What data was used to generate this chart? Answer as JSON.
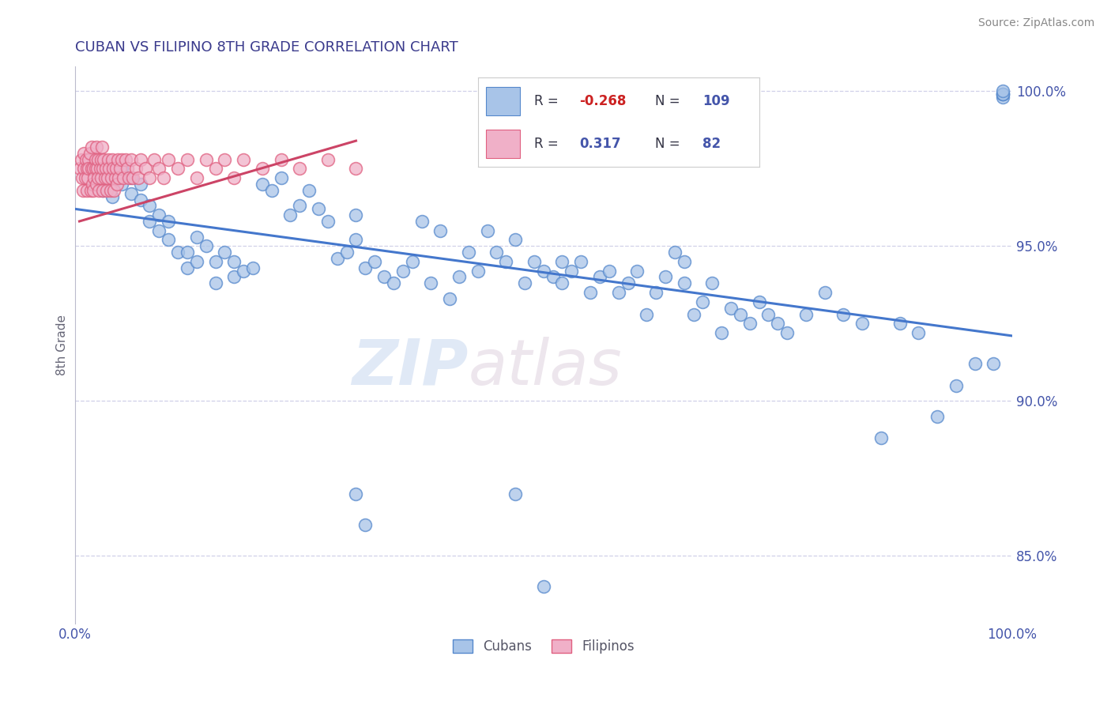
{
  "title": "CUBAN VS FILIPINO 8TH GRADE CORRELATION CHART",
  "source": "Source: ZipAtlas.com",
  "ylabel": "8th Grade",
  "xlim": [
    0.0,
    1.0
  ],
  "ylim": [
    0.828,
    1.008
  ],
  "ytick_vals": [
    0.85,
    0.9,
    0.95,
    1.0
  ],
  "ytick_labels": [
    "85.0%",
    "90.0%",
    "95.0%",
    "100.0%"
  ],
  "grid_yticks": [
    0.85,
    0.9,
    0.95,
    1.0
  ],
  "xtick_vals": [
    0.0,
    0.1,
    0.2,
    0.3,
    0.4,
    0.5,
    0.6,
    0.7,
    0.8,
    0.9,
    1.0
  ],
  "xtick_labels": [
    "0.0%",
    "",
    "",
    "",
    "",
    "",
    "",
    "",
    "",
    "",
    "100.0%"
  ],
  "grid_color": "#d0d0e8",
  "background_color": "#ffffff",
  "title_color": "#3a3a8c",
  "source_color": "#888888",
  "blue_fill": "#a8c4e8",
  "blue_edge": "#5588cc",
  "pink_fill": "#f0b0c8",
  "pink_edge": "#e06080",
  "blue_line_color": "#4477cc",
  "pink_line_color": "#cc4466",
  "legend_label1": "Cubans",
  "legend_label2": "Filipinos",
  "watermark_zip": "ZIP",
  "watermark_atlas": "atlas",
  "cubans_x": [
    0.02,
    0.03,
    0.04,
    0.04,
    0.05,
    0.05,
    0.06,
    0.06,
    0.07,
    0.07,
    0.08,
    0.08,
    0.09,
    0.09,
    0.1,
    0.1,
    0.11,
    0.12,
    0.12,
    0.13,
    0.13,
    0.14,
    0.15,
    0.15,
    0.16,
    0.17,
    0.17,
    0.18,
    0.19,
    0.2,
    0.21,
    0.22,
    0.23,
    0.24,
    0.25,
    0.26,
    0.27,
    0.28,
    0.29,
    0.3,
    0.3,
    0.31,
    0.32,
    0.33,
    0.34,
    0.35,
    0.36,
    0.37,
    0.38,
    0.39,
    0.4,
    0.41,
    0.42,
    0.43,
    0.44,
    0.45,
    0.46,
    0.47,
    0.48,
    0.49,
    0.5,
    0.51,
    0.52,
    0.52,
    0.53,
    0.54,
    0.55,
    0.56,
    0.57,
    0.58,
    0.59,
    0.6,
    0.61,
    0.62,
    0.63,
    0.64,
    0.65,
    0.65,
    0.66,
    0.67,
    0.68,
    0.69,
    0.7,
    0.71,
    0.72,
    0.73,
    0.74,
    0.75,
    0.76,
    0.78,
    0.8,
    0.82,
    0.84,
    0.86,
    0.88,
    0.9,
    0.92,
    0.94,
    0.96,
    0.98,
    0.99,
    0.99,
    0.99,
    0.99,
    0.3,
    0.31,
    0.47,
    0.5,
    0.99
  ],
  "cubans_y": [
    0.97,
    0.968,
    0.972,
    0.966,
    0.975,
    0.97,
    0.972,
    0.967,
    0.965,
    0.97,
    0.958,
    0.963,
    0.955,
    0.96,
    0.952,
    0.958,
    0.948,
    0.943,
    0.948,
    0.953,
    0.945,
    0.95,
    0.938,
    0.945,
    0.948,
    0.94,
    0.945,
    0.942,
    0.943,
    0.97,
    0.968,
    0.972,
    0.96,
    0.963,
    0.968,
    0.962,
    0.958,
    0.946,
    0.948,
    0.96,
    0.952,
    0.943,
    0.945,
    0.94,
    0.938,
    0.942,
    0.945,
    0.958,
    0.938,
    0.955,
    0.933,
    0.94,
    0.948,
    0.942,
    0.955,
    0.948,
    0.945,
    0.952,
    0.938,
    0.945,
    0.942,
    0.94,
    0.945,
    0.938,
    0.942,
    0.945,
    0.935,
    0.94,
    0.942,
    0.935,
    0.938,
    0.942,
    0.928,
    0.935,
    0.94,
    0.948,
    0.938,
    0.945,
    0.928,
    0.932,
    0.938,
    0.922,
    0.93,
    0.928,
    0.925,
    0.932,
    0.928,
    0.925,
    0.922,
    0.928,
    0.935,
    0.928,
    0.925,
    0.888,
    0.925,
    0.922,
    0.895,
    0.905,
    0.912,
    0.912,
    0.998,
    0.999,
    0.999,
    0.999,
    0.87,
    0.86,
    0.87,
    0.84,
    1.0
  ],
  "filipinos_x": [
    0.005,
    0.007,
    0.008,
    0.009,
    0.01,
    0.01,
    0.011,
    0.012,
    0.013,
    0.013,
    0.014,
    0.015,
    0.015,
    0.016,
    0.017,
    0.018,
    0.018,
    0.019,
    0.02,
    0.02,
    0.021,
    0.022,
    0.022,
    0.023,
    0.023,
    0.024,
    0.025,
    0.025,
    0.026,
    0.027,
    0.028,
    0.028,
    0.029,
    0.03,
    0.03,
    0.031,
    0.032,
    0.033,
    0.034,
    0.035,
    0.036,
    0.037,
    0.038,
    0.039,
    0.04,
    0.041,
    0.042,
    0.043,
    0.044,
    0.045,
    0.046,
    0.047,
    0.048,
    0.05,
    0.052,
    0.054,
    0.056,
    0.058,
    0.06,
    0.062,
    0.065,
    0.068,
    0.07,
    0.075,
    0.08,
    0.085,
    0.09,
    0.095,
    0.1,
    0.11,
    0.12,
    0.13,
    0.14,
    0.15,
    0.16,
    0.17,
    0.18,
    0.2,
    0.22,
    0.24,
    0.27,
    0.3
  ],
  "filipinos_y": [
    0.975,
    0.978,
    0.972,
    0.968,
    0.98,
    0.975,
    0.972,
    0.978,
    0.975,
    0.968,
    0.972,
    0.978,
    0.975,
    0.98,
    0.968,
    0.975,
    0.982,
    0.97,
    0.975,
    0.968,
    0.972,
    0.978,
    0.975,
    0.97,
    0.982,
    0.975,
    0.978,
    0.972,
    0.968,
    0.975,
    0.978,
    0.972,
    0.982,
    0.975,
    0.968,
    0.978,
    0.972,
    0.975,
    0.968,
    0.972,
    0.978,
    0.975,
    0.968,
    0.972,
    0.978,
    0.975,
    0.968,
    0.972,
    0.975,
    0.97,
    0.978,
    0.972,
    0.975,
    0.978,
    0.972,
    0.978,
    0.975,
    0.972,
    0.978,
    0.972,
    0.975,
    0.972,
    0.978,
    0.975,
    0.972,
    0.978,
    0.975,
    0.972,
    0.978,
    0.975,
    0.978,
    0.972,
    0.978,
    0.975,
    0.978,
    0.972,
    0.978,
    0.975,
    0.978,
    0.975,
    0.978,
    0.975
  ],
  "blue_trend_x": [
    0.0,
    1.0
  ],
  "blue_trend_y": [
    0.962,
    0.921
  ],
  "pink_trend_x": [
    0.005,
    0.3
  ],
  "pink_trend_y": [
    0.958,
    0.984
  ]
}
